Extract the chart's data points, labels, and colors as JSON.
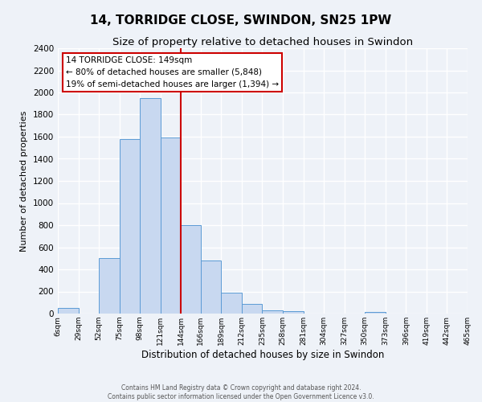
{
  "title": "14, TORRIDGE CLOSE, SWINDON, SN25 1PW",
  "subtitle": "Size of property relative to detached houses in Swindon",
  "xlabel": "Distribution of detached houses by size in Swindon",
  "ylabel": "Number of detached properties",
  "bin_labels": [
    "6sqm",
    "29sqm",
    "52sqm",
    "75sqm",
    "98sqm",
    "121sqm",
    "144sqm",
    "166sqm",
    "189sqm",
    "212sqm",
    "235sqm",
    "258sqm",
    "281sqm",
    "304sqm",
    "327sqm",
    "350sqm",
    "373sqm",
    "396sqm",
    "419sqm",
    "442sqm",
    "465sqm"
  ],
  "bin_edges": [
    6,
    29,
    52,
    75,
    98,
    121,
    144,
    166,
    189,
    212,
    235,
    258,
    281,
    304,
    327,
    350,
    373,
    396,
    419,
    442,
    465
  ],
  "bar_heights": [
    50,
    0,
    500,
    1580,
    1950,
    1590,
    800,
    480,
    190,
    90,
    30,
    25,
    0,
    0,
    0,
    15,
    0,
    0,
    0,
    0
  ],
  "bar_color": "#c8d8f0",
  "bar_edge_color": "#5b9bd5",
  "vline_x": 144,
  "vline_color": "#cc0000",
  "ylim": [
    0,
    2400
  ],
  "yticks": [
    0,
    200,
    400,
    600,
    800,
    1000,
    1200,
    1400,
    1600,
    1800,
    2000,
    2200,
    2400
  ],
  "annotation_line1": "14 TORRIDGE CLOSE: 149sqm",
  "annotation_line2": "← 80% of detached houses are smaller (5,848)",
  "annotation_line3": "19% of semi-detached houses are larger (1,394) →",
  "footer_line1": "Contains HM Land Registry data © Crown copyright and database right 2024.",
  "footer_line2": "Contains public sector information licensed under the Open Government Licence v3.0.",
  "fig_bg_color": "#eef2f8",
  "plot_bg_color": "#eef2f8",
  "grid_color": "#ffffff",
  "title_fontsize": 11,
  "subtitle_fontsize": 9.5,
  "ylabel_fontsize": 8,
  "xlabel_fontsize": 8.5,
  "ytick_fontsize": 7.5,
  "xtick_fontsize": 6.5,
  "annotation_fontsize": 7.5,
  "footer_fontsize": 5.5
}
